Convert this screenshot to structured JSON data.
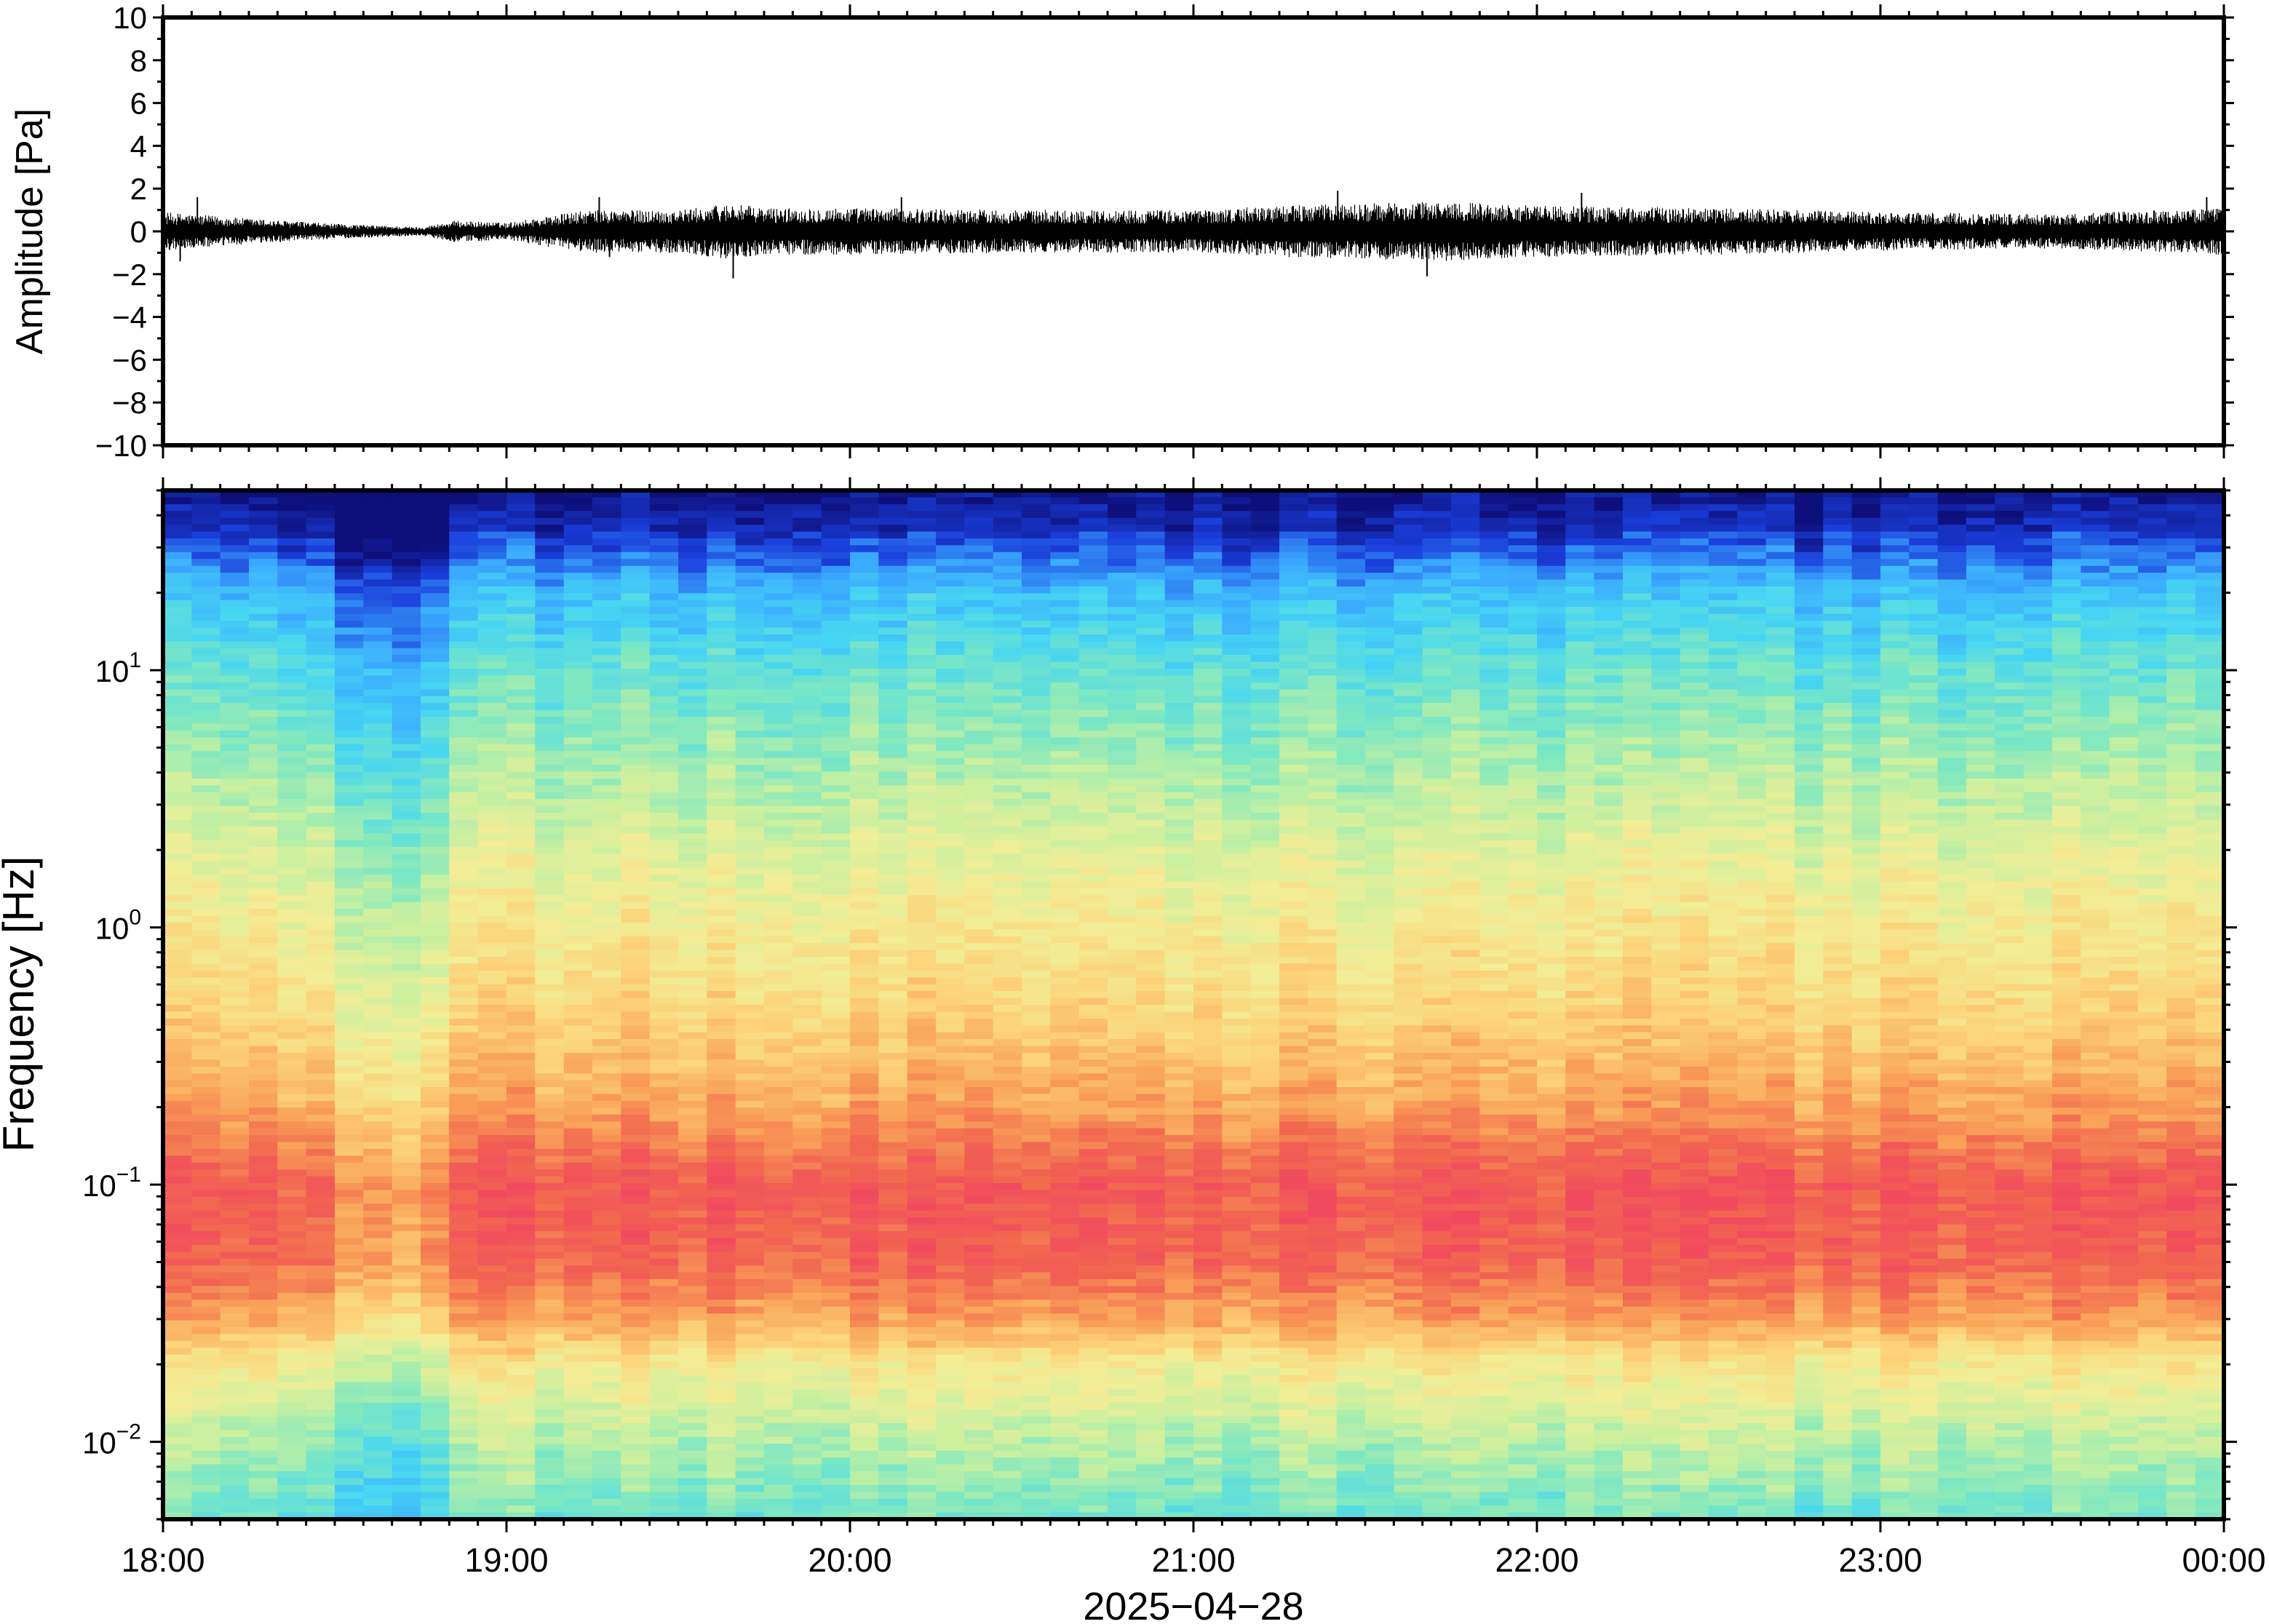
{
  "chart_data": [
    {
      "type": "line",
      "panel": "waveform",
      "ylabel": "Amplitude [Pa]",
      "ylim": [
        -10,
        10
      ],
      "yticks": [
        10,
        8,
        6,
        4,
        2,
        0,
        -2,
        -4,
        -6,
        -8,
        -10
      ],
      "ytick_labels": [
        "10",
        "8",
        "6",
        "4",
        "2",
        "0",
        "−2",
        "−4",
        "−6",
        "−8",
        "−10"
      ],
      "xlim_hours": [
        18,
        24
      ],
      "trace_color": "#000000",
      "envelope": {
        "time_hours": [
          18.0,
          18.25,
          18.5,
          18.75,
          18.85,
          19.0,
          19.15,
          19.25,
          19.5,
          19.65,
          19.75,
          20.0,
          20.5,
          21.0,
          21.25,
          21.5,
          21.75,
          22.0,
          22.5,
          23.0,
          23.5,
          24.0
        ],
        "peak_pa": [
          0.9,
          0.6,
          0.35,
          0.2,
          0.5,
          0.4,
          0.8,
          1.0,
          1.0,
          1.3,
          1.1,
          1.1,
          1.0,
          1.0,
          1.2,
          1.3,
          1.4,
          1.2,
          1.1,
          0.9,
          0.8,
          1.1
        ]
      },
      "spikes": [
        {
          "t_hours": 18.1,
          "value_pa": 1.6
        },
        {
          "t_hours": 18.05,
          "value_pa": -1.4
        },
        {
          "t_hours": 19.27,
          "value_pa": 1.6
        },
        {
          "t_hours": 19.3,
          "value_pa": -1.2
        },
        {
          "t_hours": 19.66,
          "value_pa": -2.2
        },
        {
          "t_hours": 20.15,
          "value_pa": 1.6
        },
        {
          "t_hours": 21.42,
          "value_pa": 1.9
        },
        {
          "t_hours": 21.68,
          "value_pa": -2.1
        },
        {
          "t_hours": 22.13,
          "value_pa": 1.8
        },
        {
          "t_hours": 23.95,
          "value_pa": 1.6
        }
      ]
    },
    {
      "type": "heatmap",
      "panel": "spectrogram",
      "ylabel": "Frequency [Hz]",
      "yscale": "log",
      "ylim_hz": [
        0.005,
        50
      ],
      "yticks": [
        {
          "base": "10",
          "exp": "1",
          "value": 10
        },
        {
          "base": "10",
          "exp": "0",
          "value": 1
        },
        {
          "base": "10",
          "exp": "−1",
          "value": 0.1
        },
        {
          "base": "10",
          "exp": "−2",
          "value": 0.01
        }
      ],
      "xlim_hours": [
        18,
        24
      ],
      "xtick_labels": [
        "18:00",
        "19:00",
        "20:00",
        "21:00",
        "22:00",
        "23:00",
        "00:00"
      ],
      "xlabel": "2025−04−28",
      "colormap": [
        "#0d0f7a",
        "#1a3ed9",
        "#3aa8ff",
        "#47d6f2",
        "#7de8c2",
        "#c9f0a0",
        "#f2ee96",
        "#fcd27a",
        "#f9a45a",
        "#f26a4f",
        "#f04a5e"
      ],
      "intensity_profile": {
        "frequency_hz": [
          50,
          30,
          20,
          10,
          5,
          2,
          1,
          0.5,
          0.2,
          0.1,
          0.05,
          0.03,
          0.02,
          0.01,
          0.005
        ],
        "relative_level": [
          0.0,
          0.12,
          0.25,
          0.36,
          0.44,
          0.55,
          0.62,
          0.68,
          0.8,
          0.95,
          0.92,
          0.8,
          0.62,
          0.48,
          0.38
        ]
      },
      "quiet_interval_hours": [
        18.5,
        18.8
      ]
    }
  ]
}
